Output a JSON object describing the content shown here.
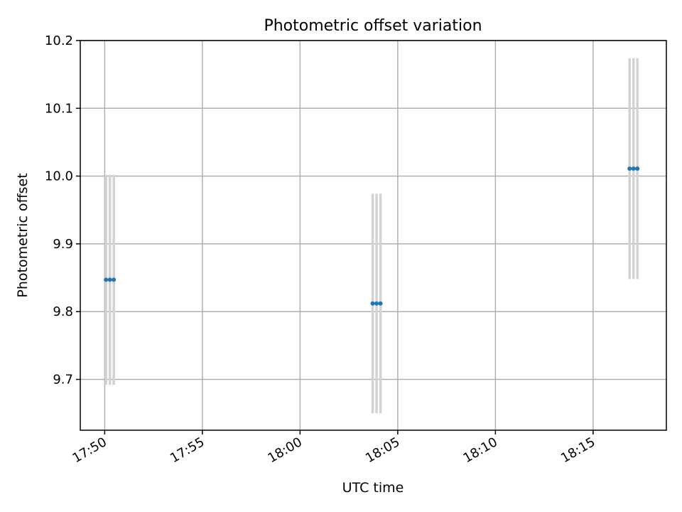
{
  "chart_data": {
    "type": "scatter",
    "title": "Photometric offset variation",
    "xlabel": "UTC time",
    "ylabel": "Photometric offset",
    "grid": true,
    "x_unit": "minute",
    "x_tick_labels": [
      "17:50",
      "17:55",
      "18:00",
      "18:05",
      "18:10",
      "18:15"
    ],
    "x_ticks": [
      "17:50",
      "17:55",
      "18:00",
      "18:05",
      "18:10",
      "18:15"
    ],
    "xlim": [
      "17:48:45",
      "18:18:45"
    ],
    "ylim": [
      9.625,
      10.2
    ],
    "y_ticks": [
      9.7,
      9.8,
      9.9,
      10.0,
      10.1,
      10.2
    ],
    "y_tick_labels": [
      "9.7",
      "9.8",
      "9.9",
      "10.0",
      "10.1",
      "10.2"
    ],
    "series": [
      {
        "color": "#1f77b4",
        "errorbar_color": "#d3d3d3",
        "points": [
          {
            "x": "17:50:04",
            "y": 9.847,
            "yerr": 0.155
          },
          {
            "x": "17:50:16",
            "y": 9.847,
            "yerr": 0.155
          },
          {
            "x": "17:50:28",
            "y": 9.847,
            "yerr": 0.155
          },
          {
            "x": "18:03:43",
            "y": 9.812,
            "yerr": 0.162
          },
          {
            "x": "18:03:55",
            "y": 9.812,
            "yerr": 0.162
          },
          {
            "x": "18:04:07",
            "y": 9.812,
            "yerr": 0.162
          },
          {
            "x": "18:16:52",
            "y": 10.011,
            "yerr": 0.163
          },
          {
            "x": "18:17:04",
            "y": 10.011,
            "yerr": 0.163
          },
          {
            "x": "18:17:16",
            "y": 10.011,
            "yerr": 0.163
          }
        ]
      }
    ]
  }
}
